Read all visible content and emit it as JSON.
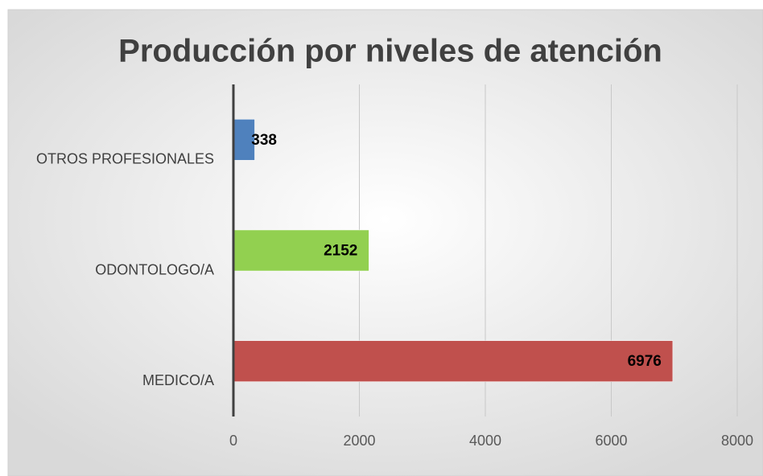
{
  "chart_data": {
    "type": "bar",
    "orientation": "horizontal",
    "title": "Producción por niveles de atención",
    "categories": [
      "OTROS PROFESIONALES",
      "ODONTOLOGO/A",
      "MEDICO/A"
    ],
    "values": [
      338,
      2152,
      6976
    ],
    "colors": [
      "#4f81bd",
      "#92d050",
      "#c0504d"
    ],
    "xlim": [
      0,
      8000
    ],
    "xticks": [
      0,
      2000,
      4000,
      6000,
      8000
    ],
    "grid": true
  }
}
